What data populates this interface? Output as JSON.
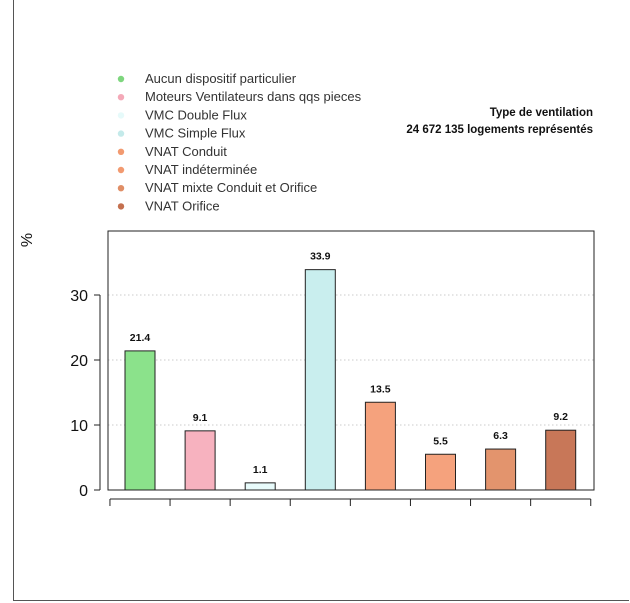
{
  "chart_data": {
    "type": "bar",
    "title": "Type de ventilation",
    "subtitle": "24 672 135 logements représentés",
    "ylabel": "%",
    "xlabel": "",
    "ylim": [
      0,
      40
    ],
    "yticks": [
      0,
      10,
      20,
      30
    ],
    "grid": "horizontal-dotted",
    "legend_position": "top-left",
    "categories": [
      "Aucun dispositif particulier",
      "Moteurs Ventilateurs dans qqs pieces",
      "VMC Double Flux",
      "VMC Simple Flux",
      "VNAT Conduit",
      "VNAT indéterminée",
      "VNAT mixte Conduit et Orifice",
      "VNAT Orifice"
    ],
    "values": [
      21.4,
      9.1,
      1.1,
      33.9,
      13.5,
      5.5,
      6.3,
      9.2
    ],
    "data_labels": [
      "21.4",
      "9.1",
      "1.1",
      "33.9",
      "13.5",
      "5.5",
      "6.3",
      "9.2"
    ],
    "colors": [
      "#8be28b",
      "#f7b2bf",
      "#e8fbfb",
      "#c9eeee",
      "#f5a27d",
      "#f5a27d",
      "#e3946d",
      "#c87758"
    ],
    "legend_colors": [
      "#7ed67e",
      "#f4a9b8",
      "#e6fafa",
      "#c4eaea",
      "#f29a70",
      "#f29a70",
      "#e08e66",
      "#c4704f"
    ]
  }
}
